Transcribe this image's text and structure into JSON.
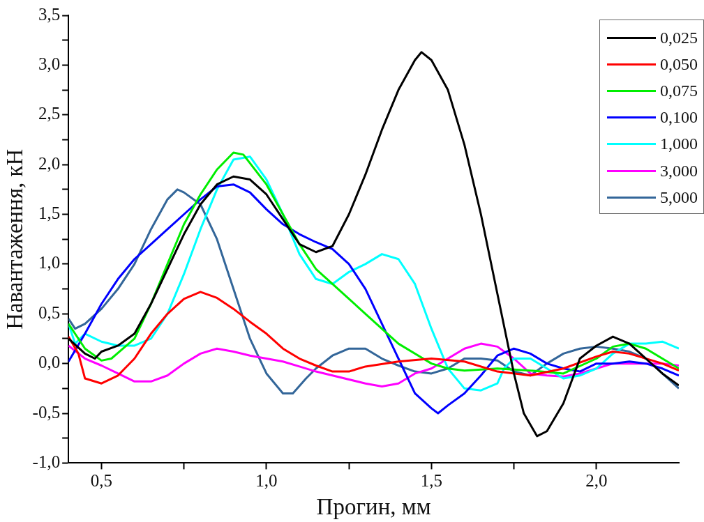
{
  "chart_data": {
    "type": "line",
    "xlabel": "Прогин, мм",
    "ylabel": "Навантаження, кН",
    "xlim": [
      0.4,
      2.25
    ],
    "ylim": [
      -1.0,
      3.5
    ],
    "xticks": [
      {
        "value": 0.5,
        "label": "0,5"
      },
      {
        "value": 0.75,
        "label": null
      },
      {
        "value": 1.0,
        "label": "1,0"
      },
      {
        "value": 1.25,
        "label": null
      },
      {
        "value": 1.5,
        "label": "1,5"
      },
      {
        "value": 1.75,
        "label": null
      },
      {
        "value": 2.0,
        "label": "2,0"
      }
    ],
    "yticks": [
      {
        "value": -1.0,
        "label": "-1,0"
      },
      {
        "value": -0.75,
        "label": null
      },
      {
        "value": -0.5,
        "label": "-0,5"
      },
      {
        "value": -0.25,
        "label": null
      },
      {
        "value": 0,
        "label": "0,0"
      },
      {
        "value": 0.25,
        "label": null
      },
      {
        "value": 0.5,
        "label": "0,5"
      },
      {
        "value": 0.75,
        "label": null
      },
      {
        "value": 1.0,
        "label": "1,0"
      },
      {
        "value": 1.25,
        "label": null
      },
      {
        "value": 1.5,
        "label": "1,5"
      },
      {
        "value": 1.75,
        "label": null
      },
      {
        "value": 2.0,
        "label": "2,0"
      },
      {
        "value": 2.25,
        "label": null
      },
      {
        "value": 2.5,
        "label": "2,5"
      },
      {
        "value": 2.75,
        "label": null
      },
      {
        "value": 3.0,
        "label": "3,0"
      },
      {
        "value": 3.25,
        "label": null
      },
      {
        "value": 3.5,
        "label": "3,5"
      }
    ],
    "grid": false,
    "legend": "top right",
    "marker": "none",
    "line_style": "solid",
    "series": [
      {
        "name": "0,025",
        "color": "#000000",
        "x": [
          0.4,
          0.45,
          0.48,
          0.5,
          0.55,
          0.6,
          0.65,
          0.7,
          0.75,
          0.8,
          0.85,
          0.9,
          0.95,
          1.0,
          1.05,
          1.1,
          1.15,
          1.2,
          1.25,
          1.3,
          1.35,
          1.4,
          1.45,
          1.47,
          1.5,
          1.55,
          1.6,
          1.65,
          1.7,
          1.75,
          1.78,
          1.82,
          1.85,
          1.9,
          1.95,
          2.0,
          2.05,
          2.1,
          2.15,
          2.2,
          2.25
        ],
        "values": [
          0.25,
          0.1,
          0.05,
          0.12,
          0.18,
          0.3,
          0.6,
          0.95,
          1.3,
          1.6,
          1.8,
          1.88,
          1.85,
          1.7,
          1.45,
          1.2,
          1.12,
          1.18,
          1.5,
          1.9,
          2.35,
          2.75,
          3.05,
          3.13,
          3.05,
          2.75,
          2.2,
          1.5,
          0.7,
          -0.1,
          -0.5,
          -0.73,
          -0.68,
          -0.4,
          0.05,
          0.18,
          0.27,
          0.2,
          0.05,
          -0.1,
          -0.22
        ]
      },
      {
        "name": "0,050",
        "color": "#ff0000",
        "x": [
          0.4,
          0.43,
          0.45,
          0.5,
          0.55,
          0.6,
          0.65,
          0.7,
          0.75,
          0.8,
          0.85,
          0.9,
          0.95,
          1.0,
          1.05,
          1.1,
          1.15,
          1.2,
          1.25,
          1.3,
          1.4,
          1.5,
          1.6,
          1.7,
          1.8,
          1.9,
          2.0,
          2.05,
          2.1,
          2.2,
          2.25
        ],
        "values": [
          0.27,
          0.1,
          -0.15,
          -0.2,
          -0.12,
          0.05,
          0.3,
          0.5,
          0.65,
          0.72,
          0.66,
          0.55,
          0.42,
          0.3,
          0.15,
          0.05,
          -0.02,
          -0.08,
          -0.08,
          -0.03,
          0.02,
          0.05,
          0.02,
          -0.08,
          -0.12,
          -0.05,
          0.07,
          0.12,
          0.1,
          0.0,
          -0.07
        ]
      },
      {
        "name": "0,075",
        "color": "#00ee00",
        "x": [
          0.4,
          0.45,
          0.5,
          0.53,
          0.6,
          0.65,
          0.7,
          0.75,
          0.8,
          0.85,
          0.9,
          0.93,
          1.0,
          1.05,
          1.1,
          1.15,
          1.2,
          1.3,
          1.4,
          1.5,
          1.55,
          1.6,
          1.7,
          1.8,
          1.9,
          2.0,
          2.05,
          2.1,
          2.15,
          2.2,
          2.25
        ],
        "values": [
          0.4,
          0.15,
          0.03,
          0.05,
          0.25,
          0.6,
          1.0,
          1.4,
          1.7,
          1.95,
          2.12,
          2.1,
          1.8,
          1.5,
          1.2,
          0.95,
          0.8,
          0.5,
          0.2,
          0.0,
          -0.05,
          -0.07,
          -0.05,
          -0.07,
          -0.1,
          0.05,
          0.17,
          0.2,
          0.15,
          0.05,
          -0.05
        ]
      },
      {
        "name": "0,100",
        "color": "#0000ff",
        "x": [
          0.4,
          0.45,
          0.5,
          0.55,
          0.6,
          0.65,
          0.7,
          0.75,
          0.8,
          0.85,
          0.9,
          0.95,
          1.0,
          1.05,
          1.1,
          1.15,
          1.2,
          1.25,
          1.3,
          1.35,
          1.4,
          1.45,
          1.5,
          1.52,
          1.55,
          1.6,
          1.65,
          1.7,
          1.75,
          1.8,
          1.85,
          1.9,
          1.95,
          2.0,
          2.05,
          2.1,
          2.15,
          2.2,
          2.25
        ],
        "values": [
          0.02,
          0.3,
          0.6,
          0.85,
          1.05,
          1.2,
          1.35,
          1.5,
          1.65,
          1.78,
          1.8,
          1.72,
          1.55,
          1.4,
          1.3,
          1.22,
          1.15,
          1.0,
          0.75,
          0.4,
          0.05,
          -0.3,
          -0.45,
          -0.5,
          -0.42,
          -0.3,
          -0.12,
          0.08,
          0.15,
          0.1,
          0.0,
          -0.05,
          -0.08,
          0.0,
          0.0,
          0.02,
          0.0,
          -0.05,
          -0.12
        ]
      },
      {
        "name": "1,000",
        "color": "#00ffff",
        "x": [
          0.4,
          0.42,
          0.45,
          0.5,
          0.55,
          0.6,
          0.65,
          0.7,
          0.75,
          0.8,
          0.85,
          0.9,
          0.95,
          1.0,
          1.05,
          1.1,
          1.15,
          1.2,
          1.25,
          1.3,
          1.35,
          1.4,
          1.45,
          1.5,
          1.55,
          1.6,
          1.65,
          1.7,
          1.72,
          1.75,
          1.8,
          1.85,
          1.9,
          1.95,
          2.0,
          2.05,
          2.1,
          2.15,
          2.2,
          2.25
        ],
        "values": [
          0.4,
          0.2,
          0.3,
          0.22,
          0.18,
          0.18,
          0.25,
          0.5,
          0.9,
          1.35,
          1.75,
          2.05,
          2.08,
          1.85,
          1.5,
          1.1,
          0.85,
          0.8,
          0.92,
          1.0,
          1.1,
          1.05,
          0.8,
          0.35,
          -0.05,
          -0.25,
          -0.27,
          -0.2,
          -0.05,
          0.05,
          0.05,
          -0.05,
          -0.15,
          -0.12,
          -0.05,
          0.1,
          0.2,
          0.2,
          0.22,
          0.15
        ]
      },
      {
        "name": "3,000",
        "color": "#ff00ff",
        "x": [
          0.4,
          0.45,
          0.5,
          0.55,
          0.6,
          0.65,
          0.7,
          0.75,
          0.8,
          0.85,
          0.9,
          0.95,
          1.0,
          1.05,
          1.1,
          1.15,
          1.2,
          1.3,
          1.35,
          1.4,
          1.45,
          1.5,
          1.55,
          1.6,
          1.65,
          1.7,
          1.75,
          1.8,
          1.85,
          1.9,
          1.95,
          2.0,
          2.05,
          2.1,
          2.2,
          2.25
        ],
        "values": [
          0.18,
          0.05,
          -0.02,
          -0.1,
          -0.18,
          -0.18,
          -0.12,
          0.0,
          0.1,
          0.15,
          0.12,
          0.08,
          0.05,
          0.02,
          -0.03,
          -0.08,
          -0.12,
          -0.2,
          -0.23,
          -0.2,
          -0.1,
          -0.05,
          0.05,
          0.15,
          0.2,
          0.17,
          0.05,
          -0.1,
          -0.12,
          -0.13,
          -0.1,
          -0.05,
          0.0,
          0.0,
          0.0,
          -0.02
        ]
      },
      {
        "name": "5,000",
        "color": "#336699",
        "x": [
          0.4,
          0.42,
          0.45,
          0.5,
          0.55,
          0.6,
          0.65,
          0.7,
          0.73,
          0.75,
          0.8,
          0.85,
          0.9,
          0.95,
          1.0,
          1.05,
          1.08,
          1.12,
          1.15,
          1.2,
          1.25,
          1.3,
          1.35,
          1.4,
          1.45,
          1.5,
          1.55,
          1.6,
          1.65,
          1.7,
          1.75,
          1.8,
          1.85,
          1.9,
          1.95,
          2.0,
          2.05,
          2.1,
          2.15,
          2.2,
          2.25
        ],
        "values": [
          0.45,
          0.35,
          0.4,
          0.55,
          0.75,
          1.0,
          1.35,
          1.65,
          1.75,
          1.72,
          1.6,
          1.25,
          0.75,
          0.25,
          -0.1,
          -0.3,
          -0.3,
          -0.15,
          -0.05,
          0.08,
          0.15,
          0.15,
          0.05,
          -0.02,
          -0.08,
          -0.1,
          -0.05,
          0.05,
          0.05,
          0.03,
          -0.08,
          -0.12,
          0.0,
          0.1,
          0.15,
          0.17,
          0.15,
          0.12,
          0.05,
          -0.1,
          -0.25
        ]
      }
    ]
  }
}
